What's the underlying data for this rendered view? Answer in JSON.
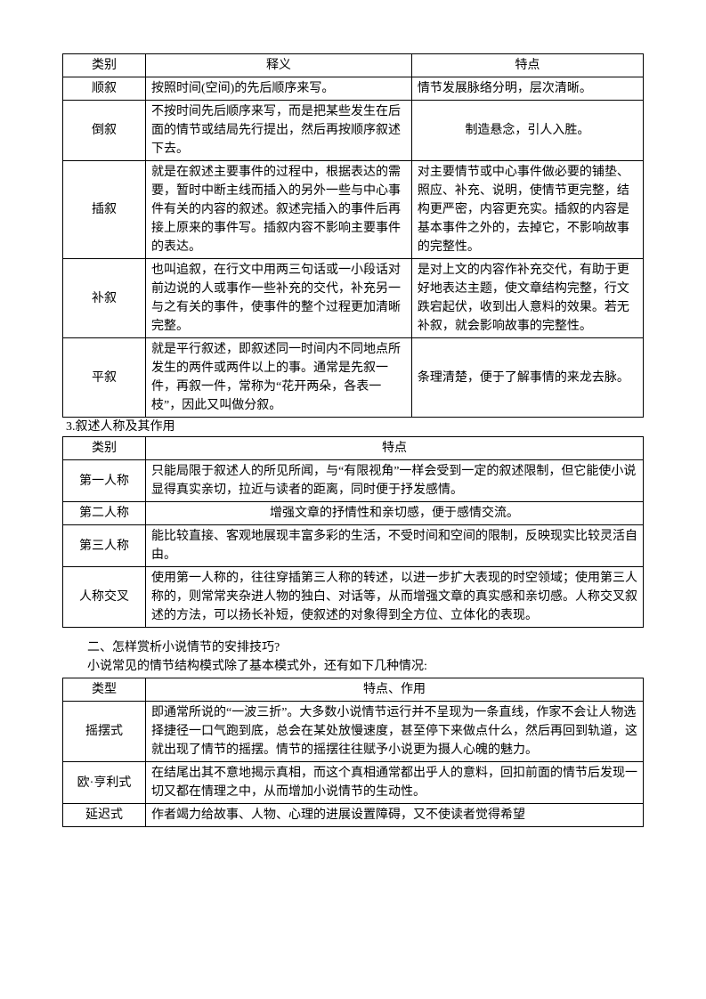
{
  "table1": {
    "headers": [
      "类别",
      "释义",
      "特点"
    ],
    "rows": [
      {
        "c0": "顺叙",
        "c1": "按照时间(空间)的先后顺序来写。",
        "c2": "情节发展脉络分明，层次清晰。"
      },
      {
        "c0": "倒叙",
        "c1": "不按时间先后顺序来写，而是把某些发生在后面的情节或结局先行提出，然后再按顺序叙述下去。",
        "c2": "制造悬念，引人入胜。"
      },
      {
        "c0": "插叙",
        "c1": "就是在叙述主要事件的过程中，根据表达的需要，暂时中断主线而插入的另外一些与中心事件有关的内容的叙述。叙述完插入的事件后再接上原来的事件写。插叙内容不影响主要事件的表达。",
        "c2": "对主要情节或中心事件做必要的铺垫、照应、补充、说明，使情节更完整，结构更严密，内容更充实。插叙的内容是基本事件之外的，去掉它，不影响故事的完整性。"
      },
      {
        "c0": "补叙",
        "c1": "也叫追叙，在行文中用两三句话或一小段话对前边说的人或事作一些补充的交代，补充另一与之有关的事件，使事件的整个过程更加清晰完整。",
        "c2": "是对上文的内容作补充交代，有助于更好地表达主题，使文章结构完整，行文跌宕起伏，收到出人意料的效果。若无补叙，就会影响故事的完整性。"
      },
      {
        "c0": "平叙",
        "c1": "就是平行叙述，即叙述同一时间内不同地点所发生的两件或两件以上的事。通常是先叙一件，再叙一件，常称为“花开两朵，各表一枝”，因此又叫做分叙。",
        "c2": "条理清楚，便于了解事情的来龙去脉。"
      }
    ]
  },
  "section3_label": "3.叙述人称及其作用",
  "table2": {
    "headers": [
      "类别",
      "特点"
    ],
    "rows": [
      {
        "c0": "第一人称",
        "c1": "只能局限于叙述人的所见所闻，与“有限视角”一样会受到一定的叙述限制，但它能使小说显得真实亲切，拉近与读者的距离，同时便于抒发感情。"
      },
      {
        "c0": "第二人称",
        "c1": "增强文章的抒情性和亲切感，便于感情交流。",
        "center": true
      },
      {
        "c0": "第三人称",
        "c1": "能比较直接、客观地展现丰富多彩的生活，不受时间和空间的限制，反映现实比较灵活自由。"
      },
      {
        "c0": "人称交叉",
        "c1": "使用第一人称的，往往穿插第三人称的转述，以进一步扩大表现的时空领域；使用第三人称的，则常常夹杂进人物的独白、对话等，从而增强文章的真实感和亲切感。人称交叉叙述的方法，可以扬长补短，使叙述的对象得到全方位、立体化的表现。"
      }
    ]
  },
  "para1": "二、怎样赏析小说情节的安排技巧?",
  "para2": "小说常见的情节结构模式除了基本模式外，还有如下几种情况:",
  "table3": {
    "headers": [
      "类型",
      "特点、作用"
    ],
    "rows": [
      {
        "c0": "摇摆式",
        "c1": "即通常所说的“一波三折”。大多数小说情节运行并不呈现为一条直线，作家不会让人物选择捷径一口气跑到底，总会在某处放慢速度，甚至停下来做点什么，然后再回到轨道，这就出现了情节的摇摆。情节的摇摆往往赋予小说更为摄人心魄的魅力。"
      },
      {
        "c0": "欧·亨利式",
        "c1": "在结尾出其不意地揭示真相，而这个真相通常都出乎人的意料，回扣前面的情节后发现一切又都在情理之中，从而增加小说情节的生动性。"
      },
      {
        "c0": "延迟式",
        "c1": "作者竭力给故事、人物、心理的进展设置障碍，又不使读者觉得希望"
      }
    ]
  }
}
